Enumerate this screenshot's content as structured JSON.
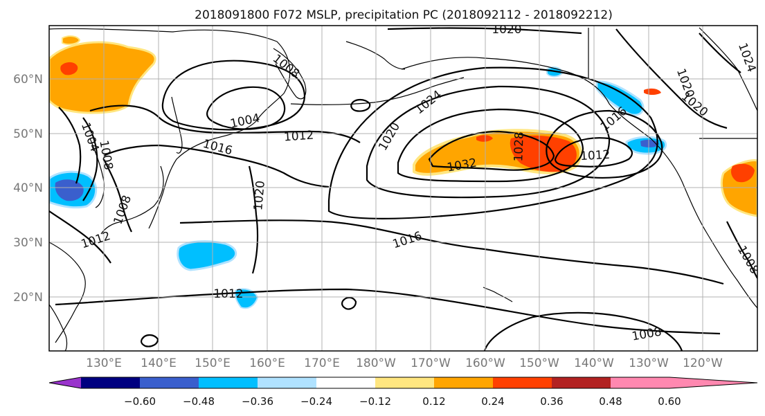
{
  "title": "2018091800 F072 MSLP, precipitation PC (2018092112 - 2018092212)",
  "lat_labels": [
    "60°N",
    "50°N",
    "40°N",
    "30°N",
    "20°N"
  ],
  "lon_labels": [
    "130°E",
    "140°E",
    "150°E",
    "160°E",
    "170°E",
    "180°W",
    "170°W",
    "160°W",
    "150°W",
    "140°W",
    "130°W",
    "120°W"
  ],
  "contour_labels": [
    "1020",
    "1008",
    "1004",
    "1012",
    "1016",
    "1020",
    "1024",
    "1028",
    "1032",
    "1016",
    "1012",
    "1020",
    "1024",
    "1020",
    "1004",
    "1008",
    "1008",
    "1012",
    "1016",
    "1012",
    "1008",
    "1008",
    "1020"
  ],
  "colorbar": {
    "colors": [
      "#9933cc",
      "#000080",
      "#3a5fcd",
      "#00bfff",
      "#b0e2ff",
      "#ffffff",
      "#ffe680",
      "#ffa500",
      "#ff4000",
      "#b22222",
      "#ff88b0"
    ],
    "tick_labels": [
      "−0.60",
      "−0.48",
      "−0.36",
      "−0.24",
      "−0.12",
      "0.12",
      "0.24",
      "0.36",
      "0.48",
      "0.60"
    ]
  }
}
